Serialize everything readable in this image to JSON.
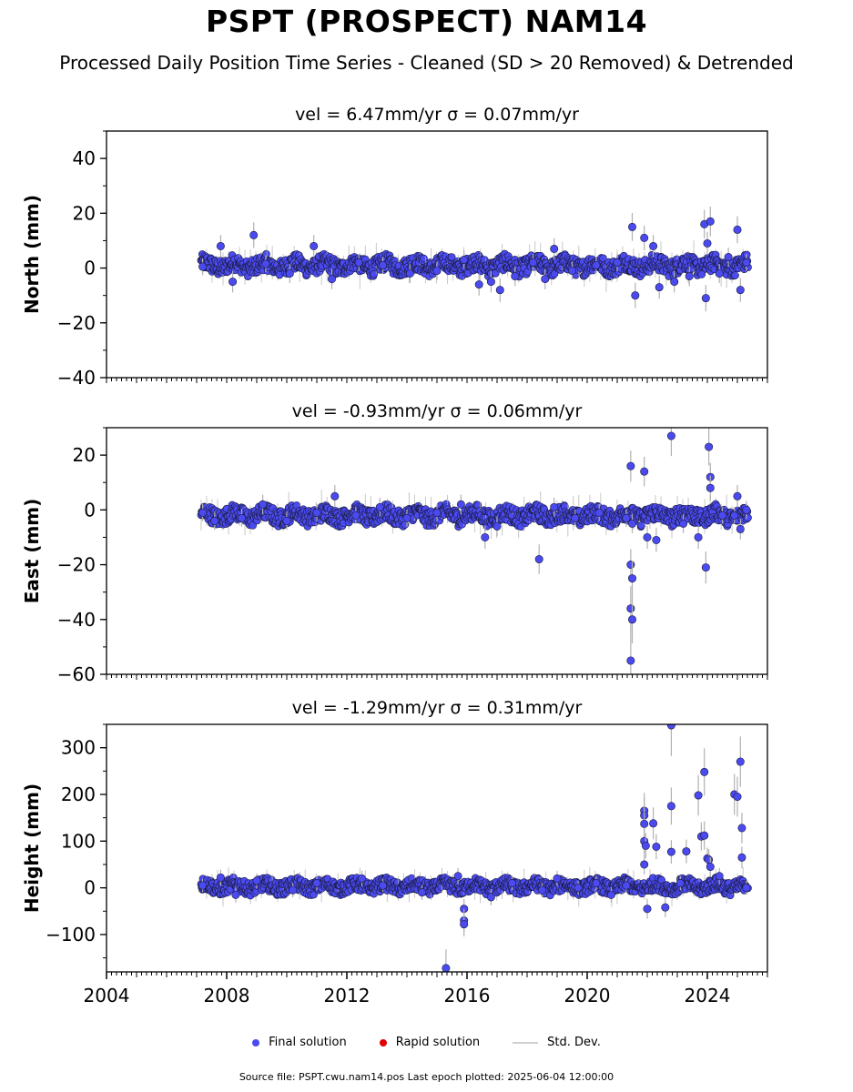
{
  "title": "PSPT (PROSPECT) NAM14",
  "subtitle": "Processed Daily Position Time Series - Cleaned (SD > 20 Removed) & Detrended",
  "legend": {
    "final": "Final solution",
    "rapid": "Rapid solution",
    "std": "Std. Dev."
  },
  "source": "Source file: PSPT.cwu.nam14.pos  Last epoch plotted: 2025-06-04 12:00:00",
  "colors": {
    "final": "#4a4af0",
    "rapid": "#e00000",
    "std": "#b0b0b0"
  },
  "chart_data": [
    {
      "type": "scatter",
      "title": "vel = 6.47mm/yr   σ = 0.07mm/yr",
      "ylabel": "North (mm)",
      "xlim": [
        2004,
        2026
      ],
      "ylim": [
        -40,
        50
      ],
      "yticks": [
        -40,
        -20,
        0,
        20,
        40
      ],
      "xticks": [],
      "series": [
        {
          "values": [
            [
              2007.2,
              0.5
            ],
            [
              2007.8,
              8
            ],
            [
              2008.2,
              -5
            ],
            [
              2008.9,
              12
            ],
            [
              2009.3,
              1.5
            ],
            [
              2010.1,
              -2
            ],
            [
              2010.9,
              8
            ],
            [
              2011.5,
              -4
            ],
            [
              2012.4,
              2
            ],
            [
              2013.2,
              1
            ],
            [
              2014.1,
              -2
            ],
            [
              2015.0,
              -1
            ],
            [
              2015.9,
              3
            ],
            [
              2016.4,
              -6
            ],
            [
              2016.8,
              -5
            ],
            [
              2017.1,
              -8
            ],
            [
              2017.6,
              -3
            ],
            [
              2018.2,
              2
            ],
            [
              2018.6,
              -4
            ],
            [
              2018.9,
              7
            ],
            [
              2019.5,
              -1
            ],
            [
              2020.3,
              1
            ],
            [
              2021.0,
              2
            ],
            [
              2021.5,
              15
            ],
            [
              2021.6,
              -10
            ],
            [
              2021.9,
              11
            ],
            [
              2022.2,
              8
            ],
            [
              2022.4,
              -7
            ],
            [
              2022.9,
              -5
            ],
            [
              2023.4,
              -3
            ],
            [
              2023.9,
              16
            ],
            [
              2024.0,
              9
            ],
            [
              2024.1,
              17
            ],
            [
              2023.95,
              -11
            ],
            [
              2024.4,
              -2
            ],
            [
              2024.7,
              4
            ],
            [
              2025.0,
              14
            ],
            [
              2025.1,
              -8
            ],
            [
              2025.3,
              2
            ]
          ]
        }
      ],
      "trend_band": {
        "center": 1,
        "spread": 3
      }
    },
    {
      "type": "scatter",
      "title": "vel = -0.93mm/yr   σ = 0.06mm/yr",
      "ylabel": "East (mm)",
      "xlim": [
        2004,
        2026
      ],
      "ylim": [
        -60,
        30
      ],
      "yticks": [
        -60,
        -40,
        -20,
        0,
        20
      ],
      "xticks": [],
      "series": [
        {
          "values": [
            [
              2007.2,
              -1
            ],
            [
              2007.6,
              -4
            ],
            [
              2008.5,
              -3
            ],
            [
              2009.2,
              2
            ],
            [
              2010.0,
              -4
            ],
            [
              2011.0,
              -1
            ],
            [
              2011.6,
              5
            ],
            [
              2012.3,
              -2
            ],
            [
              2013.1,
              1
            ],
            [
              2014.0,
              -3
            ],
            [
              2015.0,
              -1
            ],
            [
              2015.8,
              2
            ],
            [
              2016.6,
              -10
            ],
            [
              2017.0,
              -6
            ],
            [
              2018.4,
              -18
            ],
            [
              2018.9,
              1
            ],
            [
              2019.6,
              -3
            ],
            [
              2020.4,
              -1
            ],
            [
              2021.3,
              -3
            ],
            [
              2021.45,
              16
            ],
            [
              2021.45,
              -20
            ],
            [
              2021.5,
              -25
            ],
            [
              2021.45,
              -36
            ],
            [
              2021.5,
              -40
            ],
            [
              2021.45,
              -55
            ],
            [
              2021.5,
              -5
            ],
            [
              2021.9,
              14
            ],
            [
              2022.0,
              -10
            ],
            [
              2022.3,
              -11
            ],
            [
              2022.8,
              27
            ],
            [
              2023.2,
              -5
            ],
            [
              2023.7,
              -10
            ],
            [
              2023.95,
              -21
            ],
            [
              2024.05,
              23
            ],
            [
              2024.1,
              12
            ],
            [
              2024.1,
              8
            ],
            [
              2024.5,
              -2
            ],
            [
              2024.9,
              -2
            ],
            [
              2025.0,
              5
            ],
            [
              2025.1,
              -7
            ],
            [
              2025.3,
              0
            ]
          ]
        }
      ],
      "trend_band": {
        "center": -2,
        "spread": 3
      }
    },
    {
      "type": "scatter",
      "title": "vel = -1.29mm/yr   σ = 0.31mm/yr",
      "ylabel": "Height (mm)",
      "xlim": [
        2004,
        2026
      ],
      "ylim": [
        -180,
        350
      ],
      "yticks": [
        -100,
        0,
        100,
        200,
        300
      ],
      "xticks": [
        2004,
        2008,
        2012,
        2016,
        2020,
        2024
      ],
      "series": [
        {
          "values": [
            [
              2007.2,
              5
            ],
            [
              2007.8,
              22
            ],
            [
              2008.3,
              -15
            ],
            [
              2009.0,
              15
            ],
            [
              2010.2,
              -5
            ],
            [
              2011.0,
              10
            ],
            [
              2012.5,
              20
            ],
            [
              2013.2,
              5
            ],
            [
              2014.5,
              -10
            ],
            [
              2015.3,
              -172
            ],
            [
              2015.7,
              25
            ],
            [
              2015.9,
              -45
            ],
            [
              2015.9,
              -70
            ],
            [
              2015.9,
              -78
            ],
            [
              2016.8,
              -20
            ],
            [
              2017.5,
              10
            ],
            [
              2018.5,
              -5
            ],
            [
              2019.0,
              20
            ],
            [
              2019.7,
              0
            ],
            [
              2020.3,
              10
            ],
            [
              2020.8,
              -15
            ],
            [
              2021.3,
              5
            ],
            [
              2021.9,
              165
            ],
            [
              2021.9,
              155
            ],
            [
              2021.9,
              137
            ],
            [
              2021.9,
              100
            ],
            [
              2021.95,
              90
            ],
            [
              2021.9,
              50
            ],
            [
              2022.0,
              -45
            ],
            [
              2022.2,
              138
            ],
            [
              2022.3,
              88
            ],
            [
              2022.6,
              -42
            ],
            [
              2022.8,
              348
            ],
            [
              2022.8,
              175
            ],
            [
              2022.8,
              77
            ],
            [
              2023.1,
              10
            ],
            [
              2023.3,
              78
            ],
            [
              2023.7,
              198
            ],
            [
              2023.8,
              110
            ],
            [
              2023.9,
              112
            ],
            [
              2023.9,
              248
            ],
            [
              2024.0,
              63
            ],
            [
              2024.05,
              60
            ],
            [
              2024.1,
              45
            ],
            [
              2024.4,
              25
            ],
            [
              2024.9,
              200
            ],
            [
              2025.0,
              195
            ],
            [
              2025.1,
              270
            ],
            [
              2025.15,
              128
            ],
            [
              2025.15,
              65
            ],
            [
              2025.3,
              0
            ]
          ]
        }
      ],
      "trend_band": {
        "center": 3,
        "spread": 14
      }
    }
  ]
}
